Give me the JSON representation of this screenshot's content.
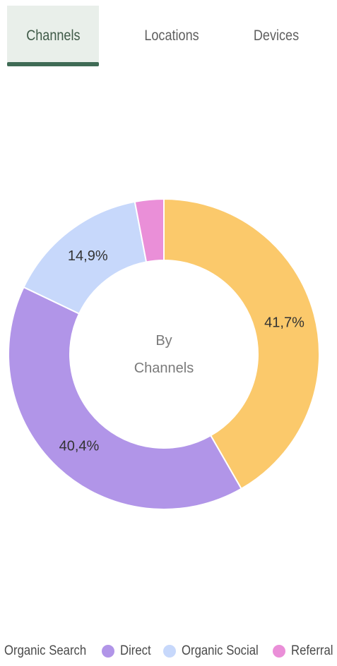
{
  "tabs": [
    {
      "label": "Channels",
      "active": true
    },
    {
      "label": "Locations",
      "active": false
    },
    {
      "label": "Devices",
      "active": false
    }
  ],
  "chart_data": {
    "type": "pie",
    "variant": "donut",
    "center_text": [
      "By",
      "Channels"
    ],
    "slices": [
      {
        "name": "Organic Search",
        "value": 41.7,
        "label": "41,7%",
        "color": "#fbc96b"
      },
      {
        "name": "Direct",
        "value": 40.4,
        "label": "40,4%",
        "color": "#b195e8"
      },
      {
        "name": "Organic Social",
        "value": 14.9,
        "label": "14,9%",
        "color": "#c7d8fb"
      },
      {
        "name": "Referral",
        "value": 3.0,
        "label": "",
        "color": "#ea8fd8"
      }
    ],
    "legend": [
      {
        "label": "Organic Search",
        "color": "#fbc96b"
      },
      {
        "label": "Direct",
        "color": "#b195e8"
      },
      {
        "label": "Organic Social",
        "color": "#c7d8fb"
      },
      {
        "label": "Referral",
        "color": "#ea8fd8"
      }
    ],
    "legend_position": "bottom"
  }
}
